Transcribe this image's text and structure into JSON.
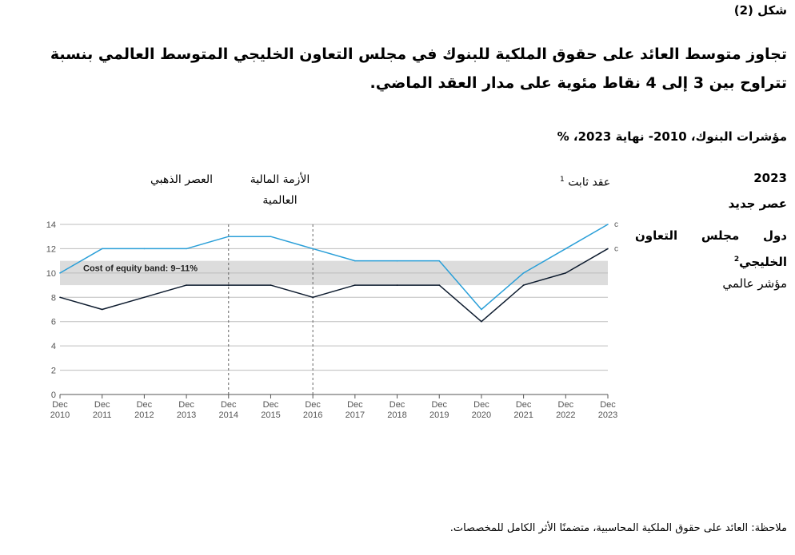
{
  "figure_label": "شكل (2)",
  "headline": "تجاوز متوسط العائد على حقوق الملكية للبنوك في مجلس التعاون الخليجي المتوسط العالمي بنسبة تتراوح بين 3 إلى 4 نقاط مئوية على مدار العقد الماضي.",
  "subtitle": "مؤشرات البنوك، 2010- نهاية 2023، %",
  "annotations": {
    "golden_age": "العصر الذهبي",
    "crisis_line1": "الأزمة المالية",
    "crisis_line2": "العالمية",
    "stable_decade": "عقد ثابت",
    "stable_sup": "1"
  },
  "legend": {
    "year": "2023",
    "new_era": "عصر جديد",
    "gcc": "دول مجلس التعاون الخليجي",
    "gcc_sup": "2",
    "global": "مؤشر عالمي"
  },
  "note": "ملاحظة: العائد على حقوق الملكية المحاسبية، متضمنًا الأثر الكامل للمخصصات.",
  "chart_data": {
    "type": "line",
    "x": [
      "Dec 2010",
      "Dec 2011",
      "Dec 2012",
      "Dec 2013",
      "Dec 2014",
      "Dec 2015",
      "Dec 2016",
      "Dec 2017",
      "Dec 2018",
      "Dec 2019",
      "Dec 2020",
      "Dec 2021",
      "Dec 2022",
      "Dec 2023"
    ],
    "series": [
      {
        "name": "دول مجلس التعاون الخليجي",
        "color": "#2a9fd8",
        "values": [
          10,
          12,
          12,
          12,
          13,
          13,
          12,
          11,
          11,
          11,
          7,
          10,
          12,
          14
        ]
      },
      {
        "name": "مؤشر عالمي",
        "color": "#0d1b2e",
        "values": [
          8,
          7,
          8,
          9,
          9,
          9,
          8,
          9,
          9,
          9,
          6,
          9,
          10,
          12
        ]
      }
    ],
    "band": {
      "label": "Cost of equity band: 9–11%",
      "from": 9,
      "to": 11,
      "color": "#dcdcdc"
    },
    "ylim": [
      0,
      14
    ],
    "yticks": [
      "0",
      "2",
      "4",
      "6",
      "8",
      "10",
      "12",
      "14"
    ],
    "vlines_at": [
      "Dec 2014",
      "Dec 2016"
    ],
    "end_markers": [
      "c",
      "c"
    ],
    "grid": true
  }
}
